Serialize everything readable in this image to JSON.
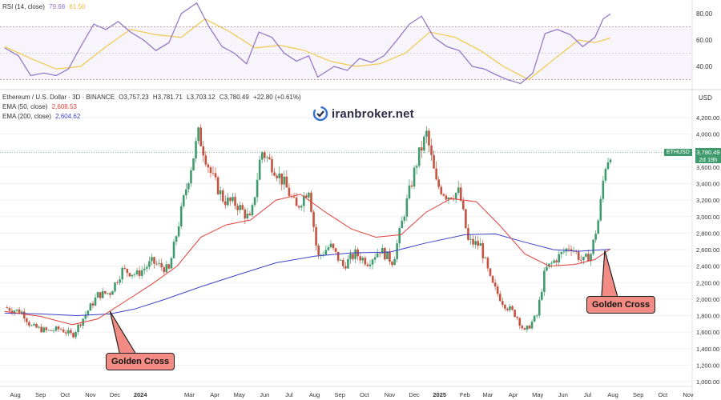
{
  "rsi_panel": {
    "label": "RSI (14, close)",
    "rsi_value": "79.68",
    "ma_value": "61.50",
    "levels": [
      "80.00",
      "60.00",
      "40.00"
    ]
  },
  "main_panel": {
    "title": "Ethereum / U.S. Dollar · 3D · BINANCE",
    "open": "O3,757.23",
    "high": "H3,781.71",
    "low": "L3,703.12",
    "close": "C3,780.49",
    "change": "+22.80 (+0.61%)",
    "ema50_label": "EMA (50, close)",
    "ema50_value": "2,608.53",
    "ema200_label": "EMA (200, close)",
    "ema200_value": "2,604.62",
    "currency": "USD",
    "ticker": "ETHUSD",
    "last_price": "3,780.49",
    "countdown": "2d 19h"
  },
  "watermark": {
    "text": "iranbroker.net",
    "icon": "iranbroker-logo-icon"
  },
  "annotations": [
    {
      "label": "Golden Cross",
      "date": "2023-11-25"
    },
    {
      "label": "Golden Cross",
      "date": "2025-07-22"
    }
  ],
  "colors": {
    "up": "#3f9b6e",
    "down": "#c6533f",
    "ema50": "#e0403c",
    "ema200": "#3d44c7",
    "rsi": "#8e71c7",
    "rsi_ma": "#f0c94a",
    "annotation_fill": "#f28b84"
  },
  "chart_data": {
    "type": "candlestick",
    "title": "Ethereum / U.S. Dollar · 3D · BINANCE",
    "y_axis": {
      "unit": "USD",
      "range": [
        950,
        4350
      ],
      "ticks": [
        "1,000.00",
        "1,200.00",
        "1,400.00",
        "1,600.00",
        "1,800.00",
        "2,000.00",
        "2,200.00",
        "2,400.00",
        "2,600.00",
        "2,800.00",
        "3,000.00",
        "3,200.00",
        "3,400.00",
        "3,600.00",
        "4,000.00",
        "4,200.00"
      ]
    },
    "x_axis": {
      "ticks": [
        {
          "label": "Aug",
          "date": "2023-08-01"
        },
        {
          "label": "Sep",
          "date": "2023-09-01"
        },
        {
          "label": "Oct",
          "date": "2023-10-01"
        },
        {
          "label": "Nov",
          "date": "2023-11-01"
        },
        {
          "label": "Dec",
          "date": "2023-12-01"
        },
        {
          "label": "2024",
          "date": "2024-01-01"
        },
        {
          "label": "Mar",
          "date": "2024-03-01"
        },
        {
          "label": "Apr",
          "date": "2024-04-01"
        },
        {
          "label": "May",
          "date": "2024-05-01"
        },
        {
          "label": "Jun",
          "date": "2024-06-01"
        },
        {
          "label": "Jul",
          "date": "2024-07-01"
        },
        {
          "label": "Aug",
          "date": "2024-08-01"
        },
        {
          "label": "Sep",
          "date": "2024-09-01"
        },
        {
          "label": "Oct",
          "date": "2024-10-01"
        },
        {
          "label": "Nov",
          "date": "2024-11-01"
        },
        {
          "label": "Dec",
          "date": "2024-12-01"
        },
        {
          "label": "2025",
          "date": "2025-01-01"
        },
        {
          "label": "Feb",
          "date": "2025-02-01"
        },
        {
          "label": "Mar",
          "date": "2025-03-01"
        },
        {
          "label": "Apr",
          "date": "2025-04-01"
        },
        {
          "label": "May",
          "date": "2025-05-01"
        },
        {
          "label": "Jun",
          "date": "2025-06-01"
        },
        {
          "label": "Jul",
          "date": "2025-07-01"
        },
        {
          "label": "Aug",
          "date": "2025-08-01"
        },
        {
          "label": "Sep",
          "date": "2025-09-01"
        },
        {
          "label": "Oct",
          "date": "2025-10-01"
        },
        {
          "label": "Nov",
          "date": "2025-11-01"
        }
      ]
    },
    "close_series": [
      {
        "date": "2023-07-19",
        "close": 1900
      },
      {
        "date": "2023-08-10",
        "close": 1840
      },
      {
        "date": "2023-08-20",
        "close": 1670
      },
      {
        "date": "2023-09-10",
        "close": 1610
      },
      {
        "date": "2023-09-25",
        "close": 1640
      },
      {
        "date": "2023-10-10",
        "close": 1560
      },
      {
        "date": "2023-10-25",
        "close": 1800
      },
      {
        "date": "2023-11-10",
        "close": 2050
      },
      {
        "date": "2023-11-25",
        "close": 2080
      },
      {
        "date": "2023-12-10",
        "close": 2350
      },
      {
        "date": "2023-12-28",
        "close": 2300
      },
      {
        "date": "2024-01-15",
        "close": 2450
      },
      {
        "date": "2024-02-05",
        "close": 2350
      },
      {
        "date": "2024-02-25",
        "close": 3300
      },
      {
        "date": "2024-03-12",
        "close": 4000
      },
      {
        "date": "2024-03-28",
        "close": 3500
      },
      {
        "date": "2024-04-12",
        "close": 3200
      },
      {
        "date": "2024-04-28",
        "close": 3150
      },
      {
        "date": "2024-05-15",
        "close": 2950
      },
      {
        "date": "2024-05-28",
        "close": 3800
      },
      {
        "date": "2024-06-12",
        "close": 3600
      },
      {
        "date": "2024-06-25",
        "close": 3400
      },
      {
        "date": "2024-07-10",
        "close": 3100
      },
      {
        "date": "2024-07-25",
        "close": 3350
      },
      {
        "date": "2024-08-05",
        "close": 2500
      },
      {
        "date": "2024-08-20",
        "close": 2650
      },
      {
        "date": "2024-09-05",
        "close": 2400
      },
      {
        "date": "2024-09-20",
        "close": 2550
      },
      {
        "date": "2024-10-05",
        "close": 2450
      },
      {
        "date": "2024-10-20",
        "close": 2600
      },
      {
        "date": "2024-11-05",
        "close": 2450
      },
      {
        "date": "2024-11-20",
        "close": 3100
      },
      {
        "date": "2024-12-05",
        "close": 3700
      },
      {
        "date": "2024-12-16",
        "close": 4000
      },
      {
        "date": "2024-12-28",
        "close": 3400
      },
      {
        "date": "2025-01-10",
        "close": 3250
      },
      {
        "date": "2025-01-25",
        "close": 3300
      },
      {
        "date": "2025-02-05",
        "close": 2700
      },
      {
        "date": "2025-02-20",
        "close": 2650
      },
      {
        "date": "2025-03-05",
        "close": 2200
      },
      {
        "date": "2025-03-20",
        "close": 1950
      },
      {
        "date": "2025-04-05",
        "close": 1800
      },
      {
        "date": "2025-04-15",
        "close": 1600
      },
      {
        "date": "2025-04-30",
        "close": 1800
      },
      {
        "date": "2025-05-10",
        "close": 2350
      },
      {
        "date": "2025-05-25",
        "close": 2500
      },
      {
        "date": "2025-06-10",
        "close": 2650
      },
      {
        "date": "2025-06-25",
        "close": 2450
      },
      {
        "date": "2025-07-05",
        "close": 2550
      },
      {
        "date": "2025-07-15",
        "close": 3000
      },
      {
        "date": "2025-07-22",
        "close": 3600
      },
      {
        "date": "2025-07-29",
        "close": 3780.49
      }
    ],
    "ema50_series": [
      {
        "date": "2023-07-19",
        "close": 1850
      },
      {
        "date": "2023-09-01",
        "close": 1790
      },
      {
        "date": "2023-10-10",
        "close": 1690
      },
      {
        "date": "2023-11-10",
        "close": 1760
      },
      {
        "date": "2023-12-10",
        "close": 1950
      },
      {
        "date": "2024-01-15",
        "close": 2180
      },
      {
        "date": "2024-02-15",
        "close": 2400
      },
      {
        "date": "2024-03-15",
        "close": 2750
      },
      {
        "date": "2024-04-15",
        "close": 2900
      },
      {
        "date": "2024-05-15",
        "close": 2960
      },
      {
        "date": "2024-06-15",
        "close": 3200
      },
      {
        "date": "2024-07-15",
        "close": 3270
      },
      {
        "date": "2024-08-15",
        "close": 3050
      },
      {
        "date": "2024-09-15",
        "close": 2850
      },
      {
        "date": "2024-10-15",
        "close": 2750
      },
      {
        "date": "2024-11-15",
        "close": 2780
      },
      {
        "date": "2024-12-15",
        "close": 3050
      },
      {
        "date": "2025-01-15",
        "close": 3220
      },
      {
        "date": "2025-02-15",
        "close": 3180
      },
      {
        "date": "2025-03-15",
        "close": 2900
      },
      {
        "date": "2025-04-15",
        "close": 2550
      },
      {
        "date": "2025-05-15",
        "close": 2400
      },
      {
        "date": "2025-06-15",
        "close": 2420
      },
      {
        "date": "2025-07-10",
        "close": 2480
      },
      {
        "date": "2025-07-29",
        "close": 2608.53
      }
    ],
    "ema200_series": [
      {
        "date": "2023-07-19",
        "close": 1830
      },
      {
        "date": "2023-09-01",
        "close": 1820
      },
      {
        "date": "2023-10-15",
        "close": 1800
      },
      {
        "date": "2023-11-25",
        "close": 1820
      },
      {
        "date": "2023-12-25",
        "close": 1880
      },
      {
        "date": "2024-02-01",
        "close": 2000
      },
      {
        "date": "2024-03-15",
        "close": 2150
      },
      {
        "date": "2024-05-01",
        "close": 2300
      },
      {
        "date": "2024-06-15",
        "close": 2440
      },
      {
        "date": "2024-08-01",
        "close": 2520
      },
      {
        "date": "2024-09-15",
        "close": 2560
      },
      {
        "date": "2024-11-01",
        "close": 2570
      },
      {
        "date": "2024-12-15",
        "close": 2680
      },
      {
        "date": "2025-02-01",
        "close": 2780
      },
      {
        "date": "2025-03-10",
        "close": 2790
      },
      {
        "date": "2025-04-15",
        "close": 2690
      },
      {
        "date": "2025-05-20",
        "close": 2600
      },
      {
        "date": "2025-06-20",
        "close": 2580
      },
      {
        "date": "2025-07-29",
        "close": 2604.62
      }
    ],
    "rsi_series": [
      {
        "date": "2023-07-19",
        "rsi": 54
      },
      {
        "date": "2023-08-05",
        "rsi": 48
      },
      {
        "date": "2023-08-20",
        "rsi": 33
      },
      {
        "date": "2023-09-05",
        "rsi": 35
      },
      {
        "date": "2023-09-20",
        "rsi": 33
      },
      {
        "date": "2023-10-05",
        "rsi": 38
      },
      {
        "date": "2023-10-20",
        "rsi": 55
      },
      {
        "date": "2023-11-05",
        "rsi": 72
      },
      {
        "date": "2023-11-20",
        "rsi": 68
      },
      {
        "date": "2023-12-05",
        "rsi": 74
      },
      {
        "date": "2023-12-20",
        "rsi": 66
      },
      {
        "date": "2024-01-05",
        "rsi": 60
      },
      {
        "date": "2024-01-20",
        "rsi": 52
      },
      {
        "date": "2024-02-05",
        "rsi": 58
      },
      {
        "date": "2024-02-20",
        "rsi": 80
      },
      {
        "date": "2024-03-10",
        "rsi": 88
      },
      {
        "date": "2024-03-25",
        "rsi": 70
      },
      {
        "date": "2024-04-10",
        "rsi": 55
      },
      {
        "date": "2024-04-25",
        "rsi": 50
      },
      {
        "date": "2024-05-10",
        "rsi": 42
      },
      {
        "date": "2024-05-25",
        "rsi": 66
      },
      {
        "date": "2024-06-10",
        "rsi": 62
      },
      {
        "date": "2024-06-25",
        "rsi": 50
      },
      {
        "date": "2024-07-10",
        "rsi": 44
      },
      {
        "date": "2024-07-25",
        "rsi": 48
      },
      {
        "date": "2024-08-05",
        "rsi": 32
      },
      {
        "date": "2024-08-25",
        "rsi": 40
      },
      {
        "date": "2024-09-10",
        "rsi": 37
      },
      {
        "date": "2024-09-25",
        "rsi": 46
      },
      {
        "date": "2024-10-10",
        "rsi": 43
      },
      {
        "date": "2024-10-25",
        "rsi": 48
      },
      {
        "date": "2024-11-10",
        "rsi": 60
      },
      {
        "date": "2024-11-25",
        "rsi": 72
      },
      {
        "date": "2024-12-10",
        "rsi": 78
      },
      {
        "date": "2024-12-25",
        "rsi": 62
      },
      {
        "date": "2025-01-10",
        "rsi": 55
      },
      {
        "date": "2025-01-25",
        "rsi": 52
      },
      {
        "date": "2025-02-10",
        "rsi": 40
      },
      {
        "date": "2025-02-25",
        "rsi": 38
      },
      {
        "date": "2025-03-10",
        "rsi": 34
      },
      {
        "date": "2025-03-25",
        "rsi": 30
      },
      {
        "date": "2025-04-10",
        "rsi": 27
      },
      {
        "date": "2025-04-25",
        "rsi": 35
      },
      {
        "date": "2025-05-10",
        "rsi": 65
      },
      {
        "date": "2025-05-25",
        "rsi": 68
      },
      {
        "date": "2025-06-10",
        "rsi": 64
      },
      {
        "date": "2025-06-25",
        "rsi": 55
      },
      {
        "date": "2025-07-10",
        "rsi": 62
      },
      {
        "date": "2025-07-20",
        "rsi": 76
      },
      {
        "date": "2025-07-29",
        "rsi": 79.68
      }
    ],
    "rsi_ma_series": [
      {
        "date": "2023-07-19",
        "rsi": 55
      },
      {
        "date": "2023-08-20",
        "rsi": 46
      },
      {
        "date": "2023-09-20",
        "rsi": 38
      },
      {
        "date": "2023-10-20",
        "rsi": 40
      },
      {
        "date": "2023-11-20",
        "rsi": 55
      },
      {
        "date": "2023-12-20",
        "rsi": 68
      },
      {
        "date": "2024-01-20",
        "rsi": 64
      },
      {
        "date": "2024-02-20",
        "rsi": 62
      },
      {
        "date": "2024-03-20",
        "rsi": 76
      },
      {
        "date": "2024-04-20",
        "rsi": 66
      },
      {
        "date": "2024-05-20",
        "rsi": 54
      },
      {
        "date": "2024-06-20",
        "rsi": 56
      },
      {
        "date": "2024-07-20",
        "rsi": 52
      },
      {
        "date": "2024-08-20",
        "rsi": 44
      },
      {
        "date": "2024-09-20",
        "rsi": 40
      },
      {
        "date": "2024-10-20",
        "rsi": 42
      },
      {
        "date": "2024-11-20",
        "rsi": 50
      },
      {
        "date": "2024-12-20",
        "rsi": 66
      },
      {
        "date": "2025-01-20",
        "rsi": 62
      },
      {
        "date": "2025-02-20",
        "rsi": 52
      },
      {
        "date": "2025-03-20",
        "rsi": 40
      },
      {
        "date": "2025-04-20",
        "rsi": 30
      },
      {
        "date": "2025-05-20",
        "rsi": 45
      },
      {
        "date": "2025-06-20",
        "rsi": 60
      },
      {
        "date": "2025-07-10",
        "rsi": 58
      },
      {
        "date": "2025-07-29",
        "rsi": 61.5
      }
    ]
  }
}
